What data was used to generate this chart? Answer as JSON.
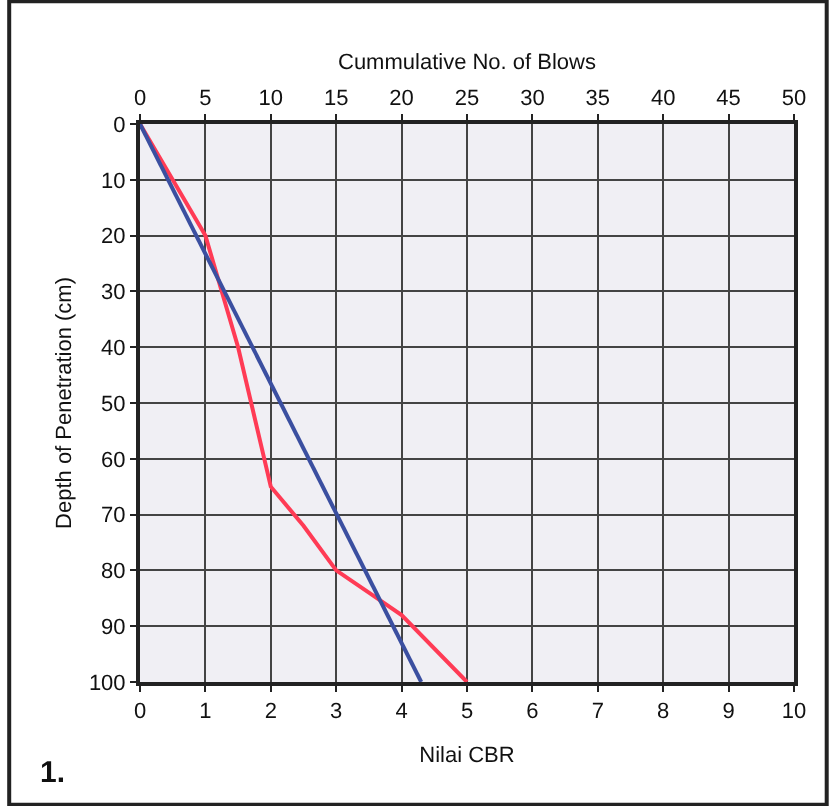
{
  "chart_data": {
    "type": "line",
    "x2label": "Cummulative No. of Blows",
    "xlabel": "Nilai CBR",
    "ylabel": "Depth of Penetration (cm)",
    "annotations": [
      "1."
    ],
    "series": [
      {
        "color": "#ff3b55",
        "x": [
          0,
          1,
          1.5,
          2,
          2.5,
          3,
          3.5,
          4,
          5
        ],
        "values": [
          0,
          20,
          40,
          65,
          72,
          80,
          84,
          88,
          100
        ]
      },
      {
        "color": "#3b4fa0",
        "x": [
          0,
          4.3
        ],
        "values": [
          0,
          100
        ]
      }
    ],
    "xlim": [
      0,
      10
    ],
    "xticks": [
      0,
      1,
      2,
      3,
      4,
      5,
      6,
      7,
      8,
      9,
      10
    ],
    "x2lim": [
      0,
      50
    ],
    "x2ticks": [
      0,
      5,
      10,
      15,
      20,
      25,
      30,
      35,
      40,
      45,
      50
    ],
    "ylim": [
      100,
      0
    ],
    "yticks": [
      0,
      10,
      20,
      30,
      40,
      50,
      60,
      70,
      80,
      90,
      100
    ],
    "grid": true,
    "marker": "none",
    "line_style": "solid"
  }
}
